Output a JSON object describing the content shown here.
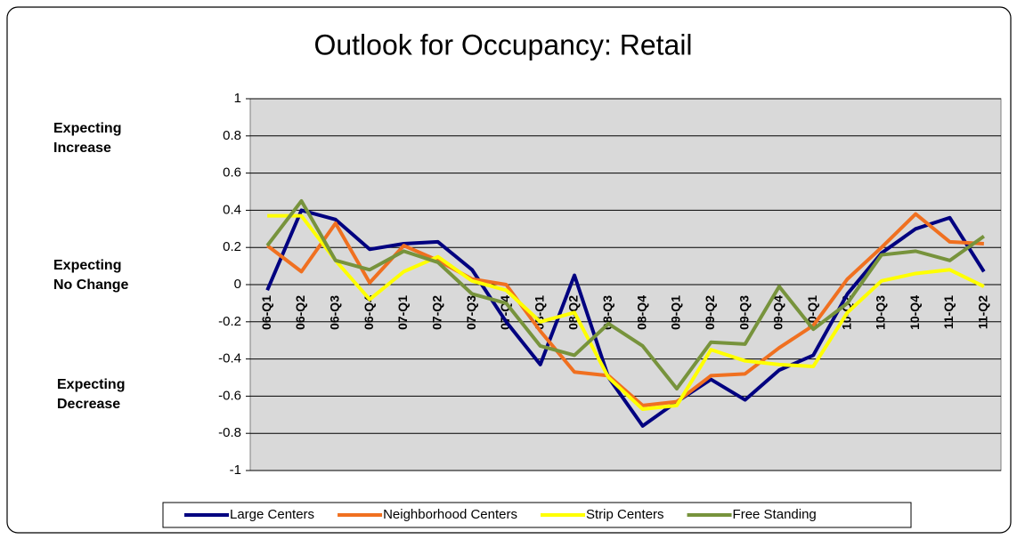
{
  "chart_data": {
    "type": "line",
    "title": "Outlook for Occupancy:  Retail",
    "annotations": [
      [
        "Expecting",
        "Increase"
      ],
      [
        "Expecting",
        "No Change"
      ],
      [
        "Expecting",
        "Decrease"
      ]
    ],
    "categories": [
      "06-Q1",
      "06-Q2",
      "06-Q3",
      "06-Q4",
      "07-Q1",
      "07-Q2",
      "07-Q3",
      "07-Q4",
      "08-Q1",
      "08-Q2",
      "08-Q3",
      "08-Q4",
      "09-Q1",
      "09-Q2",
      "09-Q3",
      "09-Q4",
      "10-Q1",
      "10-Q2",
      "10-Q3",
      "10-Q4",
      "11-Q1",
      "11-Q2"
    ],
    "series": [
      {
        "name": "Large Centers",
        "color": "#000080",
        "values": [
          -0.03,
          0.4,
          0.35,
          0.19,
          0.22,
          0.23,
          0.08,
          -0.2,
          -0.43,
          0.05,
          -0.5,
          -0.76,
          -0.63,
          -0.51,
          -0.62,
          -0.46,
          -0.38,
          -0.05,
          0.17,
          0.3,
          0.36,
          0.07
        ]
      },
      {
        "name": "Neighborhood Centers",
        "color": "#f07020",
        "values": [
          0.21,
          0.07,
          0.33,
          0.01,
          0.21,
          0.13,
          0.03,
          0.0,
          -0.25,
          -0.47,
          -0.49,
          -0.65,
          -0.63,
          -0.49,
          -0.48,
          -0.34,
          -0.22,
          0.03,
          0.2,
          0.38,
          0.23,
          0.22
        ]
      },
      {
        "name": "Strip Centers",
        "color": "#ffff00",
        "values": [
          0.37,
          0.37,
          0.13,
          -0.08,
          0.07,
          0.15,
          0.02,
          -0.03,
          -0.2,
          -0.15,
          -0.5,
          -0.67,
          -0.65,
          -0.35,
          -0.41,
          -0.43,
          -0.44,
          -0.15,
          0.02,
          0.06,
          0.08,
          -0.01
        ]
      },
      {
        "name": "Free Standing",
        "color": "#77933c",
        "values": [
          0.21,
          0.45,
          0.13,
          0.08,
          0.18,
          0.12,
          -0.05,
          -0.1,
          -0.33,
          -0.38,
          -0.21,
          -0.33,
          -0.56,
          -0.31,
          -0.32,
          -0.01,
          -0.24,
          -0.1,
          0.16,
          0.18,
          0.13,
          0.26
        ]
      }
    ],
    "ylim": [
      -1,
      1
    ],
    "yticks": [
      -1,
      -0.8,
      -0.6,
      -0.4,
      -0.2,
      0,
      0.2,
      0.4,
      0.6,
      0.8,
      1
    ],
    "grid": true,
    "legend": "bottom"
  }
}
